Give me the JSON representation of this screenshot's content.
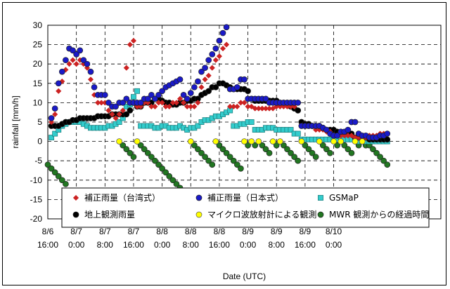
{
  "chart_data": {
    "type": "scatter",
    "xlabel": "Date (UTC)",
    "ylabel": "rainfall [mm/h]",
    "ylim": [
      -20,
      30
    ],
    "yticks": [
      -20,
      -15,
      -10,
      -5,
      0,
      5,
      10,
      15,
      20,
      25,
      30
    ],
    "xlim": [
      0,
      110
    ],
    "x_ticks": [
      {
        "x": 0,
        "line1": "8/6",
        "line2": "16:00"
      },
      {
        "x": 8,
        "line1": "8/7",
        "line2": "0:00"
      },
      {
        "x": 16,
        "line1": "8/7",
        "line2": "8:00"
      },
      {
        "x": 24,
        "line1": "8/7",
        "line2": "16:00"
      },
      {
        "x": 32,
        "line1": "8/8",
        "line2": "0:00"
      },
      {
        "x": 40,
        "line1": "8/8",
        "line2": "8:00"
      },
      {
        "x": 48,
        "line1": "8/8",
        "line2": "16:00"
      },
      {
        "x": 56,
        "line1": "8/9",
        "line2": "0:00"
      },
      {
        "x": 64,
        "line1": "8/9",
        "line2": "8:00"
      },
      {
        "x": 72,
        "line1": "8/9",
        "line2": "16:00"
      },
      {
        "x": 80,
        "line1": "8/10",
        "line2": "0:00"
      }
    ],
    "grid": true,
    "legend_position": "bottom-inside",
    "series": [
      {
        "name": "補正雨量（台湾式）",
        "marker": "diamond",
        "color": "#cc2222",
        "x": [
          1,
          2,
          3,
          4,
          5,
          6,
          7,
          8,
          9,
          10,
          11,
          12,
          13,
          14,
          15,
          16,
          17,
          18,
          19,
          20,
          21,
          22,
          23,
          24,
          25,
          26,
          27,
          28,
          29,
          30,
          31,
          32,
          33,
          34,
          35,
          36,
          37,
          38,
          39,
          40,
          41,
          42,
          43,
          44,
          45,
          46,
          47,
          48,
          49,
          50,
          51,
          52,
          53,
          54,
          55,
          56,
          57,
          58,
          59,
          60,
          61,
          62,
          63,
          64,
          65,
          66,
          67,
          68,
          69,
          70,
          71,
          72,
          73,
          74,
          75,
          76,
          77,
          78,
          79,
          80,
          81,
          82,
          83,
          84,
          85,
          86,
          87,
          88,
          89,
          90,
          91,
          92,
          93,
          94,
          95
        ],
        "y": [
          5,
          7,
          13,
          15.5,
          18.5,
          20,
          21,
          20,
          21,
          20,
          19,
          16,
          12,
          10,
          10,
          10,
          8,
          7,
          6,
          7,
          8,
          19,
          25,
          26,
          9,
          9,
          10,
          10,
          9,
          9,
          10,
          10,
          9,
          9,
          10,
          10,
          11,
          10,
          9,
          9,
          9,
          10,
          14,
          16,
          17,
          19,
          21,
          22,
          24,
          25,
          9,
          9,
          9,
          10,
          10,
          9,
          9,
          8.5,
          8.5,
          8.5,
          8.5,
          8.5,
          8.5,
          9,
          9,
          9,
          9,
          9,
          9,
          10,
          4,
          4,
          4,
          4,
          3,
          3,
          3,
          2.5,
          2.5,
          1.5,
          1.5,
          1.5,
          1.5,
          1.5,
          1.5,
          1,
          1,
          1,
          1,
          1.5,
          1.5,
          1.5,
          2,
          2,
          2
        ]
      },
      {
        "name": "補正雨量（日本式）",
        "marker": "circle",
        "color": "#1a1ac8",
        "x": [
          1,
          2,
          3,
          4,
          5,
          6,
          7,
          8,
          9,
          10,
          11,
          12,
          13,
          14,
          15,
          16,
          17,
          18,
          19,
          20,
          21,
          22,
          23,
          24,
          25,
          26,
          27,
          28,
          29,
          30,
          31,
          32,
          33,
          34,
          35,
          36,
          37,
          38,
          39,
          40,
          41,
          42,
          43,
          44,
          45,
          46,
          47,
          48,
          49,
          50,
          51,
          52,
          53,
          54,
          55,
          56,
          57,
          58,
          59,
          60,
          61,
          62,
          63,
          64,
          65,
          66,
          67,
          68,
          69,
          70,
          71,
          72,
          73,
          74,
          75,
          76,
          77,
          78,
          79,
          80,
          81,
          82,
          83,
          84,
          85,
          86,
          87,
          88,
          89,
          90,
          91,
          92,
          93,
          94,
          95
        ],
        "y": [
          6,
          8.5,
          15,
          18,
          21,
          24,
          23.5,
          22.5,
          23.5,
          21,
          20,
          18,
          14,
          12,
          12,
          12,
          10,
          9,
          9,
          10,
          10,
          11,
          10,
          10,
          10,
          10,
          11,
          11,
          12,
          11,
          12,
          13,
          14,
          14.5,
          15,
          15.5,
          16,
          12,
          11,
          12.5,
          14,
          15.5,
          18,
          19,
          21,
          22.5,
          24,
          26,
          28,
          29.5,
          13.5,
          13.5,
          14,
          16,
          16,
          11,
          11,
          11,
          11,
          11,
          11,
          10,
          10,
          10,
          10,
          10,
          10,
          10,
          10,
          10,
          4,
          4,
          4,
          4,
          4,
          4,
          3.5,
          3,
          2,
          1.5,
          1.5,
          2.5,
          2.5,
          3,
          5,
          5,
          2,
          1.5,
          1.5,
          1,
          1,
          1,
          1.5,
          1.5,
          2
        ]
      },
      {
        "name": "GSMaP",
        "marker": "square",
        "color": "#33cccc",
        "x": [
          1,
          2,
          3,
          4,
          5,
          6,
          7,
          8,
          9,
          10,
          11,
          12,
          13,
          14,
          15,
          16,
          17,
          18,
          19,
          20,
          21,
          22,
          23,
          24,
          25,
          26,
          27,
          28,
          29,
          30,
          31,
          32,
          33,
          34,
          35,
          36,
          37,
          38,
          39,
          40,
          41,
          42,
          43,
          44,
          45,
          46,
          47,
          48,
          49,
          50,
          51,
          52,
          53,
          54,
          55,
          56,
          57,
          58,
          59,
          60,
          61,
          62,
          63,
          64,
          65,
          66,
          67,
          68,
          69,
          70,
          71,
          72,
          73,
          74,
          75,
          76,
          77,
          78,
          79,
          80,
          81,
          82,
          83,
          84,
          85,
          86,
          87,
          88,
          89,
          90,
          91,
          92,
          93,
          94,
          95
        ],
        "y": [
          1,
          2,
          3,
          4,
          4.5,
          5,
          5,
          5,
          5,
          4.5,
          4,
          3.5,
          3.5,
          3.5,
          3.5,
          3.5,
          4,
          4,
          4.5,
          5,
          6,
          9,
          9.5,
          11.5,
          13,
          4,
          4,
          4,
          4,
          3.5,
          3.5,
          4,
          4,
          3.5,
          3.5,
          3.5,
          4,
          3.5,
          3,
          3.5,
          3.5,
          4,
          5,
          5.5,
          5.5,
          6,
          6.5,
          6.5,
          7,
          7.5,
          8,
          4,
          4,
          4.5,
          4.5,
          5,
          5,
          3,
          3,
          3,
          3.5,
          3.5,
          3.5,
          3,
          3,
          3,
          3,
          3,
          2,
          2,
          0.5,
          0.5,
          0.5,
          0.5,
          0.5,
          0.5,
          0.5,
          0.5,
          0.5,
          0.5,
          0.5,
          0.5,
          0.5,
          0.5,
          0.5,
          0.5,
          0,
          0,
          0,
          0,
          0,
          0,
          0,
          0,
          0
        ]
      },
      {
        "name": "地上観測雨量",
        "marker": "circle",
        "color": "#000000",
        "x": [
          1,
          2,
          3,
          4,
          5,
          6,
          7,
          8,
          9,
          10,
          11,
          12,
          13,
          14,
          15,
          16,
          17,
          18,
          19,
          20,
          21,
          22,
          23,
          24,
          25,
          26,
          27,
          28,
          29,
          30,
          31,
          32,
          33,
          34,
          35,
          36,
          37,
          38,
          39,
          40,
          41,
          42,
          43,
          44,
          45,
          46,
          47,
          48,
          49,
          50,
          51,
          52,
          53,
          54,
          55,
          56,
          57,
          58,
          59,
          60,
          61,
          62,
          63,
          64,
          65,
          66,
          67,
          68,
          69,
          70,
          71,
          72,
          73,
          74,
          75,
          76,
          77,
          78,
          79,
          80,
          81,
          82,
          83,
          84,
          85,
          86,
          87,
          88,
          89,
          90,
          91,
          92,
          93,
          94,
          95
        ],
        "y": [
          4,
          4,
          4,
          4.5,
          5,
          5,
          5.5,
          5.5,
          6,
          6,
          6,
          6,
          6,
          6.5,
          6.5,
          6.5,
          6.5,
          7,
          7,
          7,
          7,
          7,
          8,
          10,
          9,
          9,
          10,
          10,
          10,
          11,
          11,
          10.5,
          10,
          10,
          9.5,
          9.5,
          10,
          10,
          10.5,
          10.5,
          11,
          11,
          12,
          12.5,
          13,
          14,
          14,
          15,
          15,
          14.5,
          14,
          13.5,
          13.5,
          13.5,
          13.5,
          13,
          11,
          10.5,
          10.5,
          10.5,
          10.5,
          10.5,
          10.5,
          10.5,
          9.5,
          9.5,
          9.5,
          9,
          8.5,
          8,
          5,
          4.5,
          4.5,
          4,
          4,
          4,
          3.5,
          3,
          3,
          3,
          2.5,
          2.5,
          2,
          2,
          2,
          1,
          1,
          1,
          1,
          0.5,
          0.5,
          0.5,
          0.5,
          0.5,
          0.5
        ]
      },
      {
        "name": "マイクロ波放射計による観測",
        "marker": "circle",
        "color": "#ffff00",
        "x": [
          20,
          25,
          40,
          47,
          55,
          57,
          59,
          63,
          65,
          71,
          76,
          80,
          82,
          86,
          88
        ],
        "y": [
          0,
          0,
          0,
          0,
          0,
          0,
          0,
          0,
          0,
          0,
          0,
          0,
          0,
          0,
          0
        ]
      },
      {
        "name": "MWR 観測からの経過時間",
        "marker": "circle",
        "color": "#227722",
        "x": [
          0,
          1,
          2,
          3,
          4,
          5,
          21,
          22,
          23,
          24,
          26,
          27,
          28,
          29,
          30,
          31,
          32,
          33,
          34,
          35,
          36,
          37,
          38,
          39,
          41,
          42,
          43,
          44,
          45,
          46,
          48,
          49,
          50,
          51,
          52,
          53,
          54,
          56,
          58,
          60,
          61,
          62,
          64,
          66,
          67,
          68,
          69,
          70,
          72,
          73,
          74,
          75,
          77,
          78,
          79,
          81,
          83,
          84,
          85,
          87,
          89,
          90,
          91,
          92,
          93,
          94,
          95
        ],
        "y": [
          -6,
          -7,
          -8,
          -9,
          -10,
          -11,
          -1,
          -2,
          -3,
          -4,
          -1,
          -2,
          -3,
          -4,
          -5,
          -6,
          -7,
          -8,
          -9,
          -10,
          -11,
          -12,
          -13,
          -14,
          -1,
          -2,
          -3,
          -4,
          -5,
          -6,
          -1,
          -2,
          -3,
          -4,
          -5,
          -6,
          -7,
          -1,
          -1,
          -1,
          -2,
          -3,
          -1,
          -1,
          -2,
          -3,
          -4,
          -5,
          -1,
          -2,
          -3,
          -4,
          -1,
          -2,
          -3,
          -1,
          -1,
          -2,
          -3,
          -1,
          -1,
          -1,
          -2,
          -3,
          -4,
          -5,
          -6
        ]
      }
    ],
    "legend": [
      {
        "label": "補正雨量（台湾式）",
        "marker": "diamond",
        "color": "#cc2222"
      },
      {
        "label": "補正雨量（日本式）",
        "marker": "circle",
        "color": "#1a1ac8"
      },
      {
        "label": "GSMaP",
        "marker": "square",
        "color": "#33cccc"
      },
      {
        "label": "地上観測雨量",
        "marker": "circle",
        "color": "#000000"
      },
      {
        "label": "マイクロ波放射計による観測",
        "marker": "circle",
        "color": "#ffff00"
      },
      {
        "label": "MWR 観測からの経過時間",
        "marker": "circle",
        "color": "#227722"
      }
    ]
  }
}
